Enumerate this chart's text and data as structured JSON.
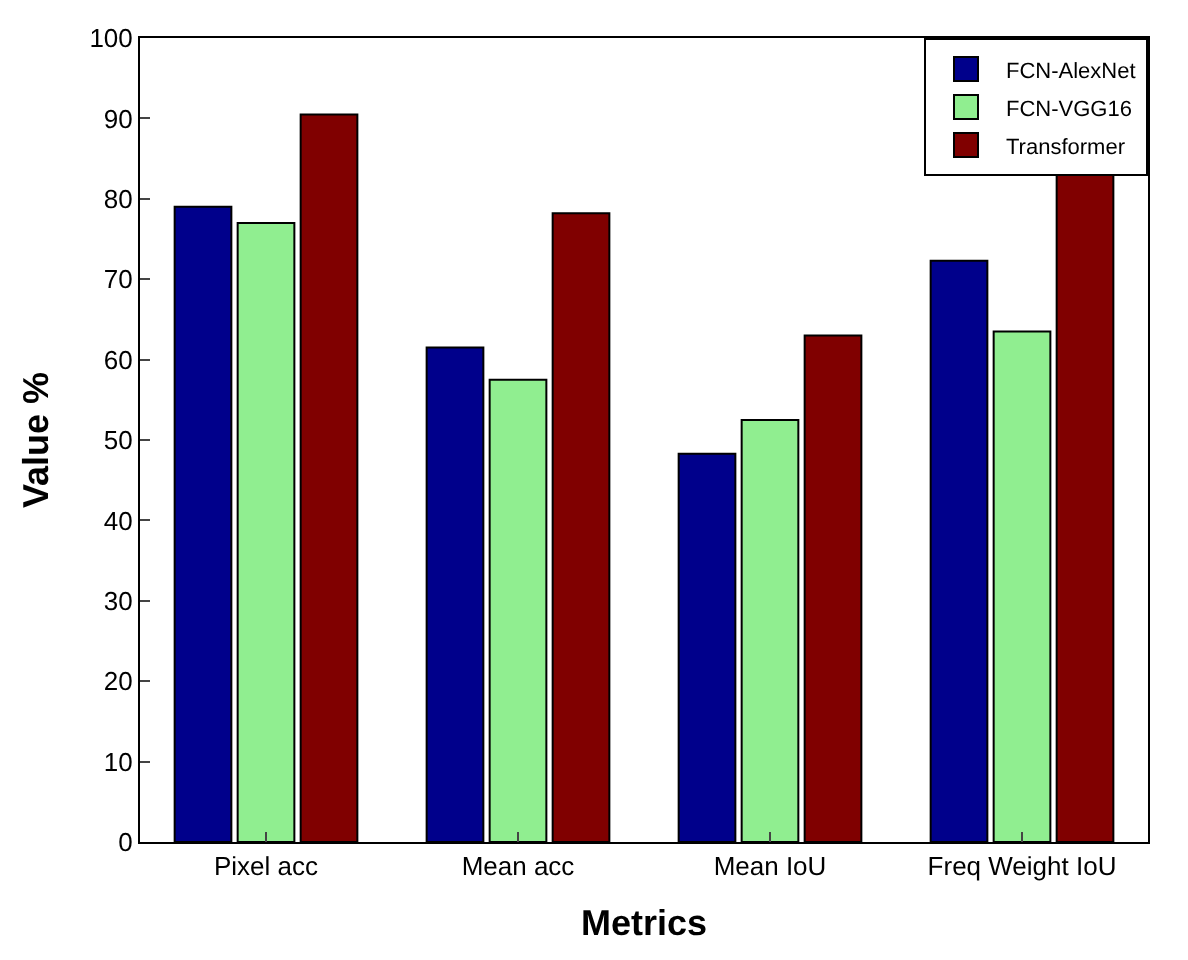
{
  "chart_data": {
    "type": "bar",
    "xlabel": "Metrics",
    "ylabel": "Value %",
    "categories": [
      "Pixel acc",
      "Mean acc",
      "Mean IoU",
      "Freq Weight IoU"
    ],
    "series": [
      {
        "name": "FCN-AlexNet",
        "color": "#00008b",
        "values": [
          79,
          61.5,
          48.3,
          72.3
        ]
      },
      {
        "name": "FCN-VGG16",
        "color": "#90ee90",
        "values": [
          77,
          57.5,
          52.5,
          63.5
        ]
      },
      {
        "name": "Transformer",
        "color": "#800000",
        "values": [
          90.5,
          78.2,
          63,
          83
        ]
      }
    ],
    "ylim": [
      0,
      100
    ],
    "yticks": [
      0,
      10,
      20,
      30,
      40,
      50,
      60,
      70,
      80,
      90,
      100
    ],
    "legend": "top right"
  }
}
